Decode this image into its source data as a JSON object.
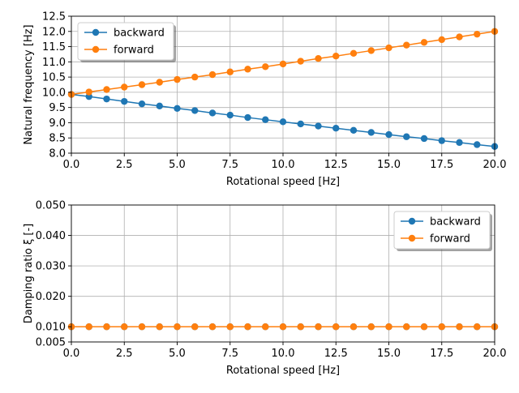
{
  "colors": {
    "backward": "#1f77b4",
    "forward": "#ff7f0e",
    "grid": "#b0b0b0",
    "axes": "#000000",
    "background": "#ffffff"
  },
  "chart_data": [
    {
      "type": "line",
      "xlabel": "Rotational speed [Hz]",
      "ylabel": "Natural frequency [Hz]",
      "xlim": [
        0,
        20
      ],
      "ylim": [
        8.0,
        12.5
      ],
      "xticks": [
        0.0,
        2.5,
        5.0,
        7.5,
        10.0,
        12.5,
        15.0,
        17.5,
        20.0
      ],
      "xtick_labels": [
        "0.0",
        "2.5",
        "5.0",
        "7.5",
        "10.0",
        "12.5",
        "15.0",
        "17.5",
        "20.0"
      ],
      "yticks": [
        8.0,
        8.5,
        9.0,
        9.5,
        10.0,
        10.5,
        11.0,
        11.5,
        12.0,
        12.5
      ],
      "ytick_labels": [
        "8.0",
        "8.5",
        "9.0",
        "9.5",
        "10.0",
        "10.5",
        "11.0",
        "11.5",
        "12.0",
        "12.5"
      ],
      "grid": true,
      "legend_position": "upper-left",
      "x": [
        0,
        0.833,
        1.667,
        2.5,
        3.333,
        4.167,
        5.0,
        5.833,
        6.667,
        7.5,
        8.333,
        9.167,
        10.0,
        10.833,
        11.667,
        12.5,
        13.333,
        14.167,
        15.0,
        15.833,
        16.667,
        17.5,
        18.333,
        19.167,
        20.0
      ],
      "series": [
        {
          "name": "backward",
          "values": [
            9.93,
            9.86,
            9.78,
            9.7,
            9.62,
            9.55,
            9.47,
            9.4,
            9.32,
            9.25,
            9.17,
            9.1,
            9.03,
            8.96,
            8.89,
            8.82,
            8.75,
            8.68,
            8.61,
            8.54,
            8.48,
            8.41,
            8.35,
            8.28,
            8.22
          ]
        },
        {
          "name": "forward",
          "values": [
            9.93,
            10.01,
            10.09,
            10.17,
            10.25,
            10.33,
            10.42,
            10.5,
            10.58,
            10.67,
            10.76,
            10.84,
            10.93,
            11.02,
            11.11,
            11.19,
            11.28,
            11.37,
            11.46,
            11.55,
            11.64,
            11.73,
            11.82,
            11.91,
            12.0
          ]
        }
      ]
    },
    {
      "type": "line",
      "xlabel": "Rotational speed [Hz]",
      "ylabel": "Damping ratio ξ [-]",
      "xlim": [
        0,
        20
      ],
      "ylim": [
        0.005,
        0.05
      ],
      "xticks": [
        0.0,
        2.5,
        5.0,
        7.5,
        10.0,
        12.5,
        15.0,
        17.5,
        20.0
      ],
      "xtick_labels": [
        "0.0",
        "2.5",
        "5.0",
        "7.5",
        "10.0",
        "12.5",
        "15.0",
        "17.5",
        "20.0"
      ],
      "yticks": [
        0.005,
        0.01,
        0.02,
        0.03,
        0.04,
        0.05
      ],
      "ytick_labels": [
        "0.005",
        "0.010",
        "0.020",
        "0.030",
        "0.040",
        "0.050"
      ],
      "grid": true,
      "legend_position": "upper-right",
      "x": [
        0,
        0.833,
        1.667,
        2.5,
        3.333,
        4.167,
        5.0,
        5.833,
        6.667,
        7.5,
        8.333,
        9.167,
        10.0,
        10.833,
        11.667,
        12.5,
        13.333,
        14.167,
        15.0,
        15.833,
        16.667,
        17.5,
        18.333,
        19.167,
        20.0
      ],
      "series": [
        {
          "name": "backward",
          "values": [
            0.01,
            0.01,
            0.01,
            0.01,
            0.01,
            0.01,
            0.01,
            0.01,
            0.01,
            0.01,
            0.01,
            0.01,
            0.01,
            0.01,
            0.01,
            0.01,
            0.01,
            0.01,
            0.01,
            0.01,
            0.01,
            0.01,
            0.01,
            0.01,
            0.01
          ]
        },
        {
          "name": "forward",
          "values": [
            0.01,
            0.01,
            0.01,
            0.01,
            0.01,
            0.01,
            0.01,
            0.01,
            0.01,
            0.01,
            0.01,
            0.01,
            0.01,
            0.01,
            0.01,
            0.01,
            0.01,
            0.01,
            0.01,
            0.01,
            0.01,
            0.01,
            0.01,
            0.01,
            0.01
          ]
        }
      ]
    }
  ]
}
